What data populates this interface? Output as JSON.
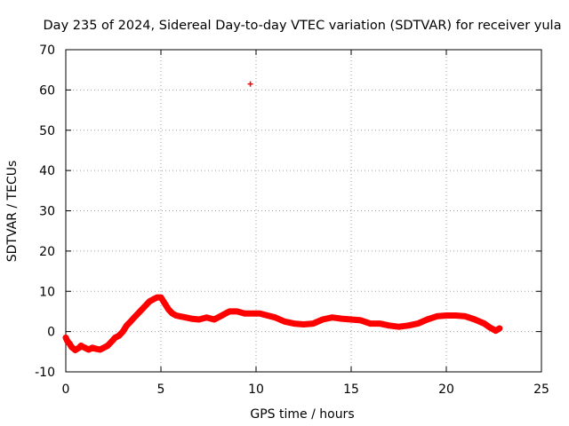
{
  "chart_data": {
    "type": "scatter",
    "title": "Day 235 of 2024, Sidereal Day-to-day VTEC variation (SDTVAR) for receiver yula",
    "xlabel": "GPS time / hours",
    "ylabel": "SDTVAR / TECUs",
    "xlim": [
      0,
      25
    ],
    "ylim": [
      -10,
      70
    ],
    "xticks": [
      0,
      5,
      10,
      15,
      20,
      25
    ],
    "yticks": [
      -10,
      0,
      10,
      20,
      30,
      40,
      50,
      60,
      70
    ],
    "grid": true,
    "color": "#ff0000",
    "series": [
      {
        "name": "SDTVAR",
        "x": [
          0.0,
          0.1,
          0.2,
          0.3,
          0.4,
          0.5,
          0.6,
          0.7,
          0.8,
          0.9,
          1.0,
          1.2,
          1.4,
          1.6,
          1.8,
          2.0,
          2.2,
          2.4,
          2.6,
          2.8,
          3.0,
          3.2,
          3.4,
          3.6,
          3.8,
          4.0,
          4.2,
          4.4,
          4.6,
          4.8,
          5.0,
          5.2,
          5.4,
          5.6,
          5.8,
          6.0,
          6.3,
          6.6,
          7.0,
          7.4,
          7.8,
          8.2,
          8.6,
          9.0,
          9.4,
          9.8,
          10.2,
          10.6,
          11.0,
          11.5,
          12.0,
          12.5,
          13.0,
          13.5,
          14.0,
          14.5,
          15.0,
          15.5,
          16.0,
          16.5,
          17.0,
          17.5,
          18.0,
          18.5,
          19.0,
          19.5,
          20.0,
          20.5,
          21.0,
          21.5,
          22.0,
          22.3,
          22.6,
          22.8
        ],
        "y": [
          -1.5,
          -2.5,
          -3.0,
          -3.8,
          -4.2,
          -4.6,
          -4.3,
          -4.0,
          -3.5,
          -3.8,
          -4.0,
          -4.5,
          -4.0,
          -4.3,
          -4.5,
          -4.0,
          -3.5,
          -2.5,
          -1.5,
          -1.0,
          0.0,
          1.5,
          2.5,
          3.5,
          4.5,
          5.5,
          6.5,
          7.5,
          8.0,
          8.5,
          8.5,
          7.0,
          5.5,
          4.5,
          4.0,
          3.8,
          3.5,
          3.2,
          3.0,
          3.5,
          3.0,
          4.0,
          5.0,
          5.0,
          4.5,
          4.5,
          4.5,
          4.0,
          3.5,
          2.5,
          2.0,
          1.8,
          2.0,
          3.0,
          3.5,
          3.2,
          3.0,
          2.8,
          2.0,
          2.0,
          1.5,
          1.2,
          1.5,
          2.0,
          3.0,
          3.8,
          4.0,
          4.0,
          3.8,
          3.0,
          2.0,
          1.0,
          0.2,
          0.8
        ]
      },
      {
        "name": "outlier",
        "x": [
          9.7
        ],
        "y": [
          61.5
        ]
      }
    ]
  }
}
